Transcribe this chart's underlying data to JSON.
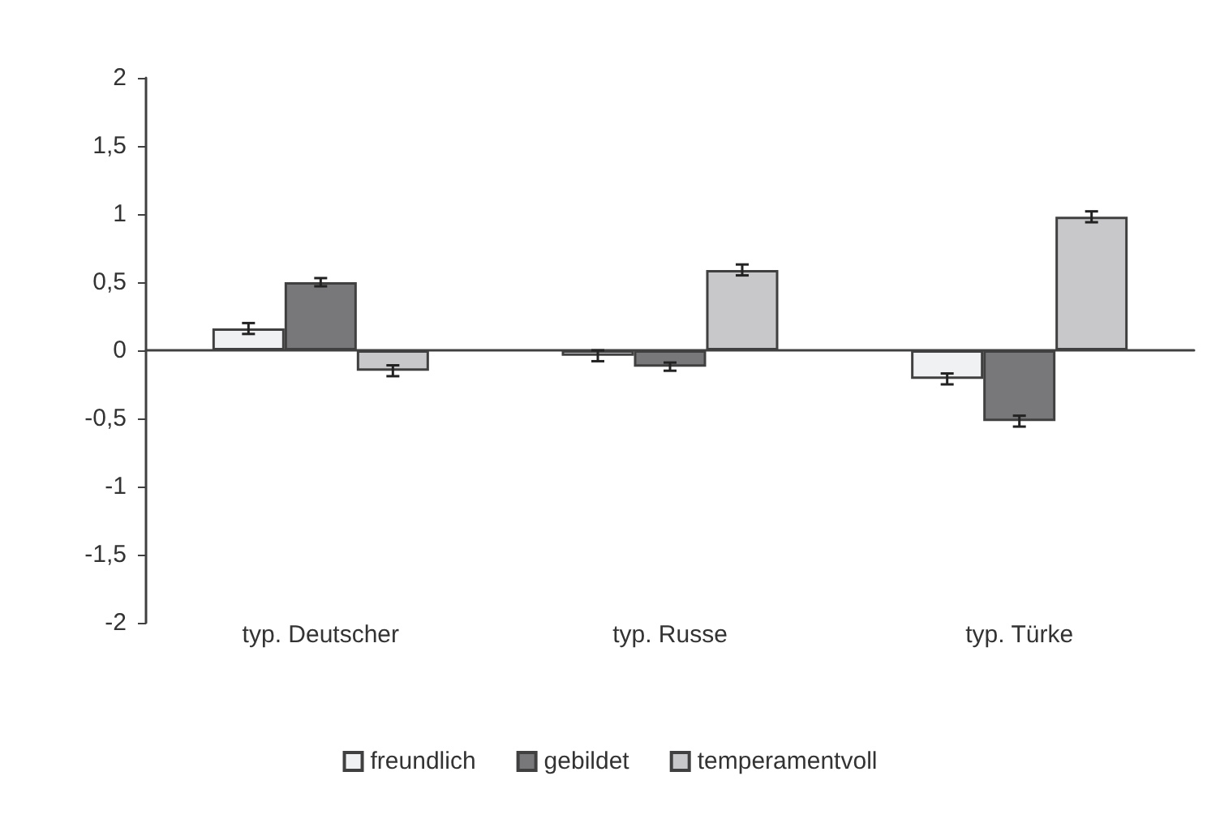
{
  "chart_data": {
    "type": "bar",
    "categories": [
      "typ. Deutscher",
      "typ. Russe",
      "typ. Türke"
    ],
    "series": [
      {
        "name": "freundlich",
        "color": "#f0f1f3",
        "values": [
          0.16,
          -0.04,
          -0.21
        ],
        "errors": [
          0.04,
          0.04,
          0.04
        ]
      },
      {
        "name": "gebildet",
        "color": "#78787b",
        "values": [
          0.5,
          -0.12,
          -0.52
        ],
        "errors": [
          0.03,
          0.03,
          0.04
        ]
      },
      {
        "name": "temperamentvoll",
        "color": "#c8c8ca",
        "values": [
          -0.15,
          0.59,
          0.98
        ],
        "errors": [
          0.04,
          0.04,
          0.04
        ]
      }
    ],
    "ylim": [
      -2,
      2
    ],
    "yticks": [
      2,
      {
        "value": 1.5,
        "label": "1,5"
      },
      1,
      {
        "value": 0.5,
        "label": "0,5"
      },
      0,
      {
        "value": -0.5,
        "label": "-0,5"
      },
      -1,
      {
        "value": -1.5,
        "label": "-1,5"
      },
      -2
    ],
    "legend": "bottom"
  }
}
